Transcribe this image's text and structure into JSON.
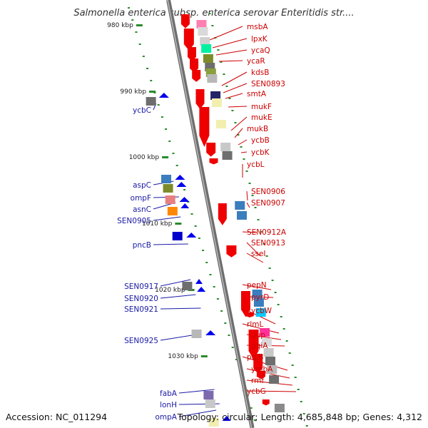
{
  "title": "Salmonella enterica subsp. enterica serovar Enteritidis str....",
  "footer": {
    "accession": "Accession: NC_011294",
    "topology": "Topology: circular; Length: 4,685,848 bp; Genes: 4,312"
  },
  "colors": {
    "forward_gene": "#ee0000",
    "reverse_gene": "#0000ee",
    "backbone": "#808080",
    "right_label": "#cc0000",
    "left_label": "#1a1aa6",
    "tick_dot": "#2a8a2a"
  },
  "kbp_ticks": [
    {
      "label": "980 kbp",
      "kbp": 980
    },
    {
      "label": "990 kbp",
      "kbp": 990
    },
    {
      "label": "1000 kbp",
      "kbp": 1000
    },
    {
      "label": "1010 kbp",
      "kbp": 1010
    },
    {
      "label": "1020 kbp",
      "kbp": 1020
    },
    {
      "label": "1030 kbp",
      "kbp": 1030
    }
  ],
  "right_genes": [
    "msbA",
    "lpxK",
    "ycaQ",
    "ycaR",
    "kdsB",
    "SEN0893",
    "smtA",
    "mukF",
    "mukE",
    "mukB",
    "ycbB",
    "ycbK",
    "ycbL",
    "SEN0906",
    "SEN0907",
    "SEN0912A",
    "SEN0913",
    "sseI",
    "pepN",
    "pyrD",
    "ycbW",
    "rlmL",
    "uup",
    "pqiA",
    "pqiB",
    "ymbA",
    "rmf",
    "ycbG"
  ],
  "left_genes": [
    "ycbC",
    "aspC",
    "ompF",
    "asnC",
    "SEN0905",
    "pncB",
    "SEN0917",
    "SEN0920",
    "SEN0921",
    "SEN0925",
    "fabA",
    "lonH",
    "ompA"
  ]
}
